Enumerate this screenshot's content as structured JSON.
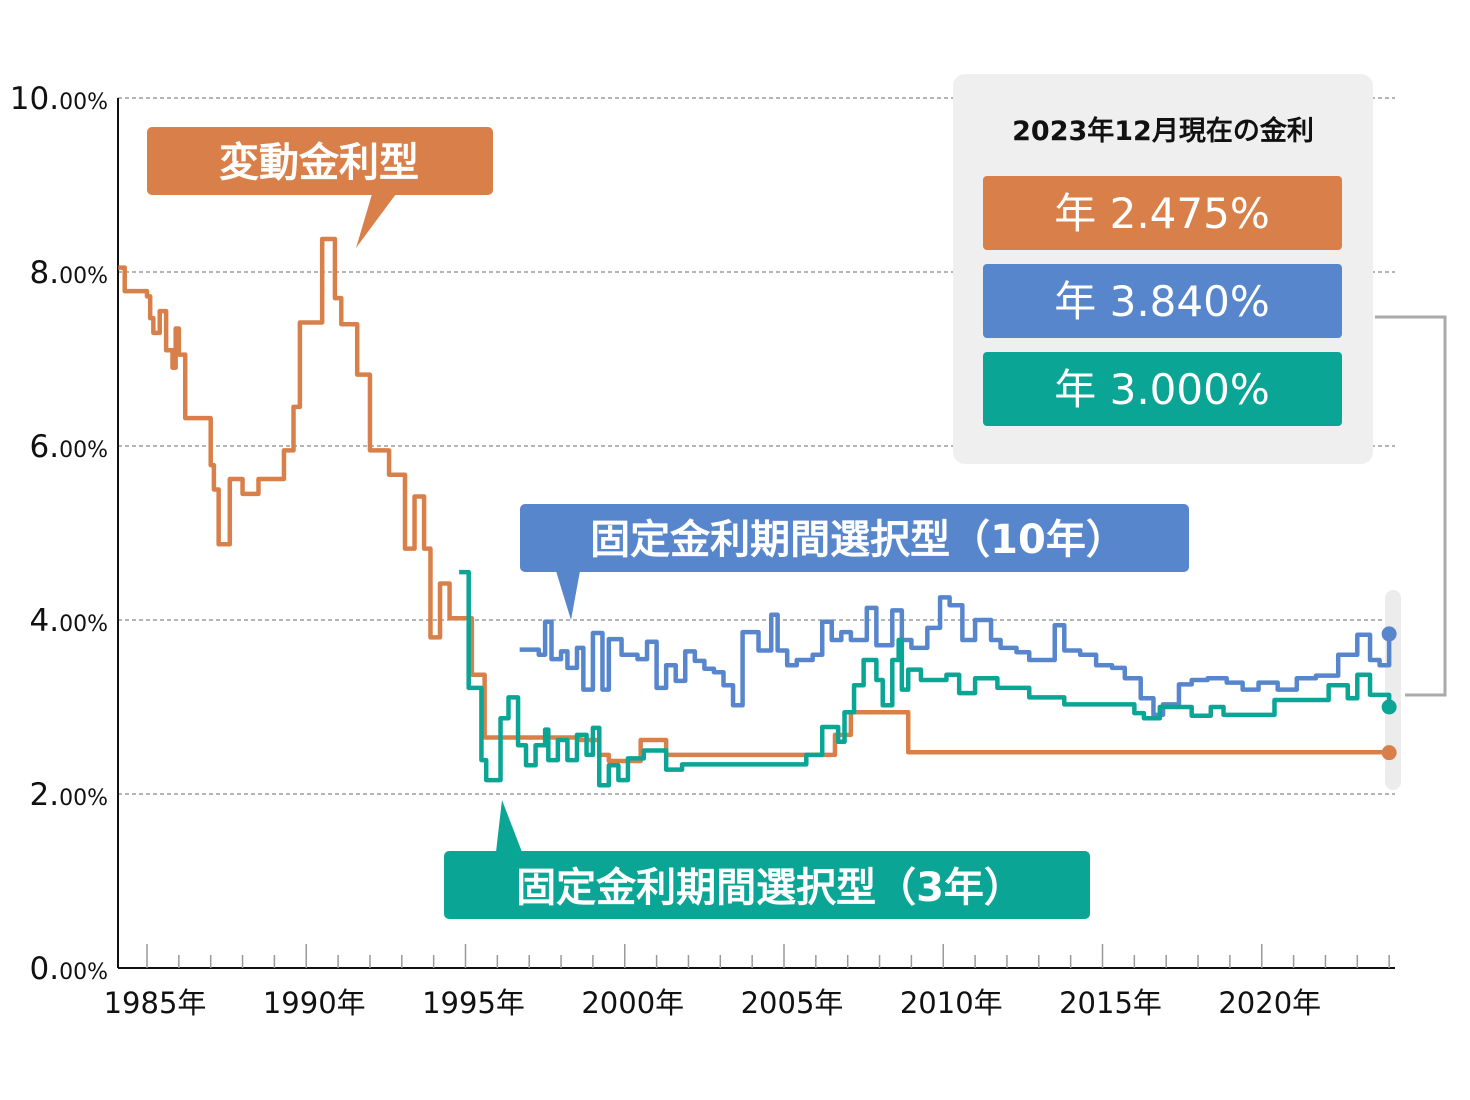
{
  "chart_data": {
    "type": "line",
    "title": "",
    "xlabel": "",
    "ylabel": "",
    "xlim": [
      1984.1,
      2024.0
    ],
    "ylim": [
      0,
      10
    ],
    "grid": "horizontal dashed",
    "y_ticks": [
      {
        "value": 0,
        "label": "0.00%"
      },
      {
        "value": 2,
        "label": "2.00%"
      },
      {
        "value": 4,
        "label": "4.00%"
      },
      {
        "value": 6,
        "label": "6.00%"
      },
      {
        "value": 8,
        "label": "8.00%"
      },
      {
        "value": 10,
        "label": "10.00%"
      }
    ],
    "x_ticks": [
      {
        "value": 1985,
        "label": "1985年"
      },
      {
        "value": 1990,
        "label": "1990年"
      },
      {
        "value": 1995,
        "label": "1995年"
      },
      {
        "value": 2000,
        "label": "2000年"
      },
      {
        "value": 2005,
        "label": "2005年"
      },
      {
        "value": 2010,
        "label": "2010年"
      },
      {
        "value": 2015,
        "label": "2015年"
      },
      {
        "value": 2020,
        "label": "2020年"
      }
    ],
    "series": [
      {
        "name": "変動金利型",
        "color": "#d9804a",
        "step": true,
        "points": [
          [
            1984.1,
            8.05
          ],
          [
            1984.3,
            7.78
          ],
          [
            1985.0,
            7.72
          ],
          [
            1985.1,
            7.47
          ],
          [
            1985.2,
            7.3
          ],
          [
            1985.4,
            7.55
          ],
          [
            1985.6,
            7.1
          ],
          [
            1985.8,
            6.9
          ],
          [
            1985.9,
            7.35
          ],
          [
            1986.0,
            7.05
          ],
          [
            1986.2,
            6.32
          ],
          [
            1987.0,
            5.78
          ],
          [
            1987.1,
            5.5
          ],
          [
            1987.25,
            4.87
          ],
          [
            1987.6,
            5.62
          ],
          [
            1988.0,
            5.45
          ],
          [
            1988.5,
            5.62
          ],
          [
            1989.3,
            5.95
          ],
          [
            1989.6,
            6.45
          ],
          [
            1989.8,
            7.42
          ],
          [
            1990.5,
            8.38
          ],
          [
            1990.9,
            7.7
          ],
          [
            1991.1,
            7.4
          ],
          [
            1991.6,
            6.82
          ],
          [
            1992.0,
            5.95
          ],
          [
            1992.6,
            5.67
          ],
          [
            1993.1,
            4.82
          ],
          [
            1993.4,
            5.42
          ],
          [
            1993.7,
            4.82
          ],
          [
            1993.9,
            3.8
          ],
          [
            1994.2,
            4.42
          ],
          [
            1994.5,
            4.02
          ],
          [
            1995.2,
            3.37
          ],
          [
            1995.6,
            2.65
          ],
          [
            1998.6,
            2.62
          ],
          [
            1999.2,
            2.45
          ],
          [
            1999.5,
            2.38
          ],
          [
            2000.5,
            2.62
          ],
          [
            2001.3,
            2.45
          ],
          [
            2006.6,
            2.68
          ],
          [
            2007.1,
            2.94
          ],
          [
            2008.9,
            2.48
          ],
          [
            2024.0,
            2.475
          ]
        ]
      },
      {
        "name": "固定金利期間選択型（10年）",
        "color": "#5886cc",
        "step": true,
        "points": [
          [
            1996.7,
            3.66
          ],
          [
            1997.3,
            3.6
          ],
          [
            1997.5,
            3.98
          ],
          [
            1997.7,
            3.55
          ],
          [
            1998.0,
            3.64
          ],
          [
            1998.2,
            3.45
          ],
          [
            1998.5,
            3.68
          ],
          [
            1998.7,
            3.2
          ],
          [
            1999.0,
            3.85
          ],
          [
            1999.3,
            3.2
          ],
          [
            1999.5,
            3.78
          ],
          [
            1999.9,
            3.6
          ],
          [
            2000.4,
            3.55
          ],
          [
            2000.7,
            3.75
          ],
          [
            2001.0,
            3.22
          ],
          [
            2001.3,
            3.48
          ],
          [
            2001.6,
            3.3
          ],
          [
            2001.9,
            3.64
          ],
          [
            2002.2,
            3.53
          ],
          [
            2002.5,
            3.44
          ],
          [
            2002.8,
            3.4
          ],
          [
            2003.1,
            3.25
          ],
          [
            2003.4,
            3.02
          ],
          [
            2003.7,
            3.86
          ],
          [
            2004.2,
            3.65
          ],
          [
            2004.6,
            4.06
          ],
          [
            2004.8,
            3.65
          ],
          [
            2005.1,
            3.48
          ],
          [
            2005.4,
            3.54
          ],
          [
            2005.9,
            3.6
          ],
          [
            2006.2,
            3.98
          ],
          [
            2006.5,
            3.77
          ],
          [
            2006.8,
            3.86
          ],
          [
            2007.1,
            3.77
          ],
          [
            2007.6,
            4.14
          ],
          [
            2007.9,
            3.71
          ],
          [
            2008.4,
            4.11
          ],
          [
            2008.7,
            3.77
          ],
          [
            2009.0,
            3.68
          ],
          [
            2009.5,
            3.91
          ],
          [
            2009.9,
            4.26
          ],
          [
            2010.2,
            4.17
          ],
          [
            2010.6,
            3.77
          ],
          [
            2011.0,
            4.0
          ],
          [
            2011.5,
            3.77
          ],
          [
            2011.8,
            3.68
          ],
          [
            2012.3,
            3.63
          ],
          [
            2012.7,
            3.54
          ],
          [
            2013.5,
            3.94
          ],
          [
            2013.8,
            3.65
          ],
          [
            2014.3,
            3.6
          ],
          [
            2014.8,
            3.48
          ],
          [
            2015.3,
            3.45
          ],
          [
            2015.7,
            3.33
          ],
          [
            2016.2,
            3.1
          ],
          [
            2016.6,
            2.91
          ],
          [
            2016.9,
            3.03
          ],
          [
            2017.4,
            3.26
          ],
          [
            2017.8,
            3.31
          ],
          [
            2018.3,
            3.33
          ],
          [
            2018.9,
            3.28
          ],
          [
            2019.4,
            3.2
          ],
          [
            2019.9,
            3.28
          ],
          [
            2020.5,
            3.2
          ],
          [
            2021.1,
            3.33
          ],
          [
            2021.7,
            3.36
          ],
          [
            2022.4,
            3.6
          ],
          [
            2023.0,
            3.83
          ],
          [
            2023.4,
            3.54
          ],
          [
            2023.7,
            3.48
          ],
          [
            2024.0,
            3.84
          ]
        ]
      },
      {
        "name": "固定金利期間選択型（3年）",
        "color": "#0ba596",
        "step": true,
        "points": [
          [
            1994.8,
            4.55
          ],
          [
            1995.1,
            3.22
          ],
          [
            1995.5,
            2.39
          ],
          [
            1995.65,
            2.16
          ],
          [
            1996.1,
            2.87
          ],
          [
            1996.35,
            3.11
          ],
          [
            1996.65,
            2.56
          ],
          [
            1996.9,
            2.33
          ],
          [
            1997.2,
            2.56
          ],
          [
            1997.5,
            2.74
          ],
          [
            1997.6,
            2.39
          ],
          [
            1997.9,
            2.62
          ],
          [
            1998.2,
            2.39
          ],
          [
            1998.5,
            2.68
          ],
          [
            1998.8,
            2.45
          ],
          [
            1999.0,
            2.76
          ],
          [
            1999.2,
            2.1
          ],
          [
            1999.5,
            2.33
          ],
          [
            1999.8,
            2.16
          ],
          [
            2000.1,
            2.41
          ],
          [
            2000.6,
            2.5
          ],
          [
            2001.3,
            2.28
          ],
          [
            2001.8,
            2.34
          ],
          [
            2005.7,
            2.45
          ],
          [
            2006.2,
            2.77
          ],
          [
            2006.7,
            2.6
          ],
          [
            2006.9,
            2.94
          ],
          [
            2007.2,
            3.25
          ],
          [
            2007.5,
            3.54
          ],
          [
            2007.9,
            3.31
          ],
          [
            2008.1,
            3.02
          ],
          [
            2008.4,
            3.54
          ],
          [
            2008.6,
            3.77
          ],
          [
            2008.7,
            3.2
          ],
          [
            2008.9,
            3.43
          ],
          [
            2009.3,
            3.31
          ],
          [
            2010.1,
            3.37
          ],
          [
            2010.5,
            3.16
          ],
          [
            2011.0,
            3.33
          ],
          [
            2011.7,
            3.22
          ],
          [
            2012.7,
            3.11
          ],
          [
            2013.8,
            3.03
          ],
          [
            2016.0,
            2.93
          ],
          [
            2016.3,
            2.87
          ],
          [
            2016.8,
            3.0
          ],
          [
            2017.8,
            2.9
          ],
          [
            2018.4,
            3.0
          ],
          [
            2018.8,
            2.91
          ],
          [
            2020.4,
            3.08
          ],
          [
            2022.1,
            3.25
          ],
          [
            2022.7,
            3.1
          ],
          [
            2023.0,
            3.37
          ],
          [
            2023.4,
            3.14
          ],
          [
            2024.0,
            3.0
          ]
        ]
      }
    ],
    "callouts": {
      "variable": "変動金利型",
      "fixed10": "固定金利期間選択型（10年）",
      "fixed3": "固定金利期間選択型（3年）"
    },
    "legend": {
      "title": "2023年12月現在の金利",
      "placement": "top-right",
      "items": [
        {
          "label": "年 2.475%",
          "color": "#d9804a"
        },
        {
          "label": "年 3.840%",
          "color": "#5886cc"
        },
        {
          "label": "年 3.000%",
          "color": "#0ba596"
        }
      ]
    }
  }
}
